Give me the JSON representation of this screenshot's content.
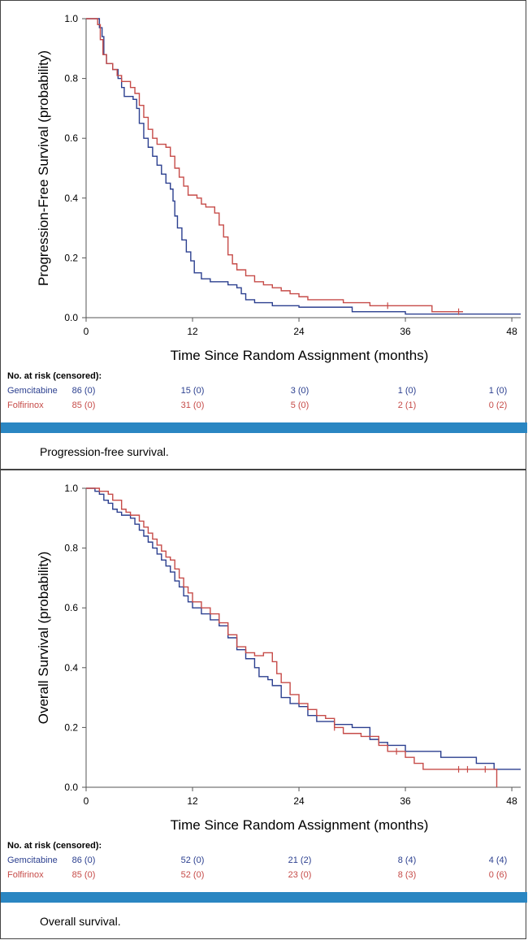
{
  "colors": {
    "gemcitabine": "#2b3f8f",
    "folfirinox": "#c64b48",
    "band": "#2a86c2"
  },
  "risk_title": "No. at risk (censored):",
  "chart_data": [
    {
      "type": "line",
      "subtype": "kaplan-meier-step",
      "xlabel": "Time Since Random Assignment (months)",
      "ylabel": "Progression-Free Survival (probability)",
      "xlim": [
        0,
        49
      ],
      "ylim": [
        0,
        1.0
      ],
      "x_ticks": [
        0,
        12,
        24,
        36,
        48
      ],
      "y_ticks": [
        0.0,
        0.2,
        0.4,
        0.6,
        0.8,
        1.0
      ],
      "x_tick_labels": [
        "0",
        "12",
        "24",
        "36",
        "48"
      ],
      "y_tick_labels": [
        "0.0",
        "0.2",
        "0.4",
        "0.6",
        "0.8",
        "1.0"
      ],
      "grid": false,
      "series": [
        {
          "name": "Gemcitabine",
          "color": "#2b3f8f",
          "points": [
            [
              0,
              1.0
            ],
            [
              1.2,
              1.0
            ],
            [
              1.5,
              0.97
            ],
            [
              1.8,
              0.94
            ],
            [
              2.0,
              0.88
            ],
            [
              2.3,
              0.85
            ],
            [
              3.0,
              0.83
            ],
            [
              3.6,
              0.8
            ],
            [
              4.0,
              0.77
            ],
            [
              4.3,
              0.74
            ],
            [
              5.3,
              0.73
            ],
            [
              5.7,
              0.7
            ],
            [
              6.0,
              0.65
            ],
            [
              6.5,
              0.6
            ],
            [
              7.0,
              0.57
            ],
            [
              7.5,
              0.54
            ],
            [
              8.0,
              0.51
            ],
            [
              8.5,
              0.48
            ],
            [
              9.0,
              0.45
            ],
            [
              9.5,
              0.43
            ],
            [
              9.8,
              0.39
            ],
            [
              10.0,
              0.34
            ],
            [
              10.3,
              0.3
            ],
            [
              10.8,
              0.26
            ],
            [
              11.3,
              0.22
            ],
            [
              11.8,
              0.19
            ],
            [
              12.2,
              0.15
            ],
            [
              13.0,
              0.13
            ],
            [
              14.0,
              0.12
            ],
            [
              16.0,
              0.11
            ],
            [
              17.0,
              0.1
            ],
            [
              17.5,
              0.08
            ],
            [
              18.0,
              0.06
            ],
            [
              19.0,
              0.05
            ],
            [
              21.0,
              0.04
            ],
            [
              24.0,
              0.035
            ],
            [
              30.0,
              0.02
            ],
            [
              36.0,
              0.012
            ],
            [
              49.0,
              0.012
            ]
          ],
          "censored": []
        },
        {
          "name": "Folfirinox",
          "color": "#c64b48",
          "points": [
            [
              0,
              1.0
            ],
            [
              1.0,
              1.0
            ],
            [
              1.3,
              0.98
            ],
            [
              1.6,
              0.93
            ],
            [
              1.9,
              0.88
            ],
            [
              2.3,
              0.85
            ],
            [
              3.0,
              0.83
            ],
            [
              3.5,
              0.81
            ],
            [
              4.0,
              0.79
            ],
            [
              5.0,
              0.77
            ],
            [
              5.5,
              0.75
            ],
            [
              6.0,
              0.71
            ],
            [
              6.5,
              0.67
            ],
            [
              7.0,
              0.63
            ],
            [
              7.5,
              0.6
            ],
            [
              8.0,
              0.58
            ],
            [
              9.0,
              0.57
            ],
            [
              9.5,
              0.54
            ],
            [
              10.0,
              0.5
            ],
            [
              10.5,
              0.47
            ],
            [
              11.0,
              0.44
            ],
            [
              11.5,
              0.41
            ],
            [
              12.5,
              0.4
            ],
            [
              13.0,
              0.38
            ],
            [
              13.5,
              0.37
            ],
            [
              14.5,
              0.35
            ],
            [
              15.0,
              0.31
            ],
            [
              15.5,
              0.27
            ],
            [
              16.0,
              0.21
            ],
            [
              16.5,
              0.18
            ],
            [
              17.0,
              0.16
            ],
            [
              18.0,
              0.14
            ],
            [
              19.0,
              0.12
            ],
            [
              20.0,
              0.11
            ],
            [
              21.0,
              0.1
            ],
            [
              22.0,
              0.09
            ],
            [
              23.0,
              0.08
            ],
            [
              24.0,
              0.07
            ],
            [
              25.0,
              0.06
            ],
            [
              29.0,
              0.05
            ],
            [
              32.0,
              0.04
            ],
            [
              39.0,
              0.02
            ],
            [
              42.5,
              0.02
            ]
          ],
          "censored": [
            34,
            42
          ]
        }
      ],
      "risk_table": {
        "header_times": [
          0,
          12,
          24,
          36,
          48
        ],
        "rows": [
          {
            "label": "Gemcitabine",
            "values": [
              "86 (0)",
              "15 (0)",
              "3 (0)",
              "1 (0)",
              "1 (0)"
            ]
          },
          {
            "label": "Folfirinox",
            "values": [
              "85 (0)",
              "31 (0)",
              "5 (0)",
              "2 (1)",
              "0 (2)"
            ]
          }
        ]
      },
      "caption": "Progression-free survival."
    },
    {
      "type": "line",
      "subtype": "kaplan-meier-step",
      "xlabel": "Time Since Random Assignment (months)",
      "ylabel": "Overall Survival (probability)",
      "xlim": [
        0,
        49
      ],
      "ylim": [
        0,
        1.0
      ],
      "x_ticks": [
        0,
        12,
        24,
        36,
        48
      ],
      "y_ticks": [
        0.0,
        0.2,
        0.4,
        0.6,
        0.8,
        1.0
      ],
      "x_tick_labels": [
        "0",
        "12",
        "24",
        "36",
        "48"
      ],
      "y_tick_labels": [
        "0.0",
        "0.2",
        "0.4",
        "0.6",
        "0.8",
        "1.0"
      ],
      "grid": false,
      "series": [
        {
          "name": "Gemcitabine",
          "color": "#2b3f8f",
          "points": [
            [
              0,
              1.0
            ],
            [
              1.0,
              0.99
            ],
            [
              1.5,
              0.98
            ],
            [
              2.0,
              0.96
            ],
            [
              2.5,
              0.95
            ],
            [
              3.0,
              0.93
            ],
            [
              3.5,
              0.92
            ],
            [
              4.0,
              0.91
            ],
            [
              5.0,
              0.9
            ],
            [
              5.5,
              0.88
            ],
            [
              6.0,
              0.86
            ],
            [
              6.5,
              0.84
            ],
            [
              7.0,
              0.82
            ],
            [
              7.5,
              0.8
            ],
            [
              8.0,
              0.78
            ],
            [
              8.5,
              0.76
            ],
            [
              9.0,
              0.74
            ],
            [
              9.5,
              0.72
            ],
            [
              10.0,
              0.69
            ],
            [
              10.5,
              0.67
            ],
            [
              11.0,
              0.64
            ],
            [
              11.5,
              0.62
            ],
            [
              12.0,
              0.6
            ],
            [
              13.0,
              0.58
            ],
            [
              14.0,
              0.56
            ],
            [
              15.0,
              0.54
            ],
            [
              16.0,
              0.5
            ],
            [
              17.0,
              0.46
            ],
            [
              18.0,
              0.43
            ],
            [
              19.0,
              0.4
            ],
            [
              19.5,
              0.37
            ],
            [
              20.5,
              0.36
            ],
            [
              21.0,
              0.34
            ],
            [
              22.0,
              0.3
            ],
            [
              23.0,
              0.28
            ],
            [
              24.0,
              0.27
            ],
            [
              25.0,
              0.24
            ],
            [
              26.0,
              0.22
            ],
            [
              28.0,
              0.21
            ],
            [
              30.0,
              0.2
            ],
            [
              32.0,
              0.16
            ],
            [
              33.0,
              0.15
            ],
            [
              34.0,
              0.14
            ],
            [
              36.0,
              0.12
            ],
            [
              40.0,
              0.1
            ],
            [
              44.0,
              0.08
            ],
            [
              46.0,
              0.06
            ],
            [
              49.0,
              0.06
            ]
          ],
          "censored": []
        },
        {
          "name": "Folfirinox",
          "color": "#c64b48",
          "points": [
            [
              0,
              1.0
            ],
            [
              1.5,
              0.99
            ],
            [
              2.5,
              0.98
            ],
            [
              3.0,
              0.96
            ],
            [
              4.0,
              0.93
            ],
            [
              4.5,
              0.92
            ],
            [
              5.0,
              0.91
            ],
            [
              6.0,
              0.89
            ],
            [
              6.5,
              0.87
            ],
            [
              7.0,
              0.85
            ],
            [
              7.5,
              0.83
            ],
            [
              8.0,
              0.81
            ],
            [
              8.5,
              0.79
            ],
            [
              9.0,
              0.77
            ],
            [
              9.5,
              0.76
            ],
            [
              10.0,
              0.73
            ],
            [
              10.5,
              0.7
            ],
            [
              11.0,
              0.67
            ],
            [
              11.5,
              0.65
            ],
            [
              12.0,
              0.62
            ],
            [
              13.0,
              0.6
            ],
            [
              14.0,
              0.58
            ],
            [
              15.0,
              0.55
            ],
            [
              16.0,
              0.51
            ],
            [
              17.0,
              0.47
            ],
            [
              18.0,
              0.45
            ],
            [
              19.0,
              0.44
            ],
            [
              20.0,
              0.45
            ],
            [
              21.0,
              0.42
            ],
            [
              21.5,
              0.38
            ],
            [
              22.0,
              0.35
            ],
            [
              23.0,
              0.31
            ],
            [
              24.0,
              0.28
            ],
            [
              25.0,
              0.26
            ],
            [
              26.0,
              0.24
            ],
            [
              27.0,
              0.23
            ],
            [
              28.0,
              0.2
            ],
            [
              29.0,
              0.18
            ],
            [
              31.0,
              0.17
            ],
            [
              33.0,
              0.14
            ],
            [
              34.0,
              0.12
            ],
            [
              36.0,
              0.1
            ],
            [
              37.0,
              0.08
            ],
            [
              38.0,
              0.06
            ],
            [
              44.0,
              0.06
            ],
            [
              46.3,
              0.06
            ],
            [
              46.3,
              0.0
            ]
          ],
          "censored": [
            28,
            35,
            42,
            43,
            45
          ]
        }
      ],
      "risk_table": {
        "header_times": [
          0,
          12,
          24,
          36,
          48
        ],
        "rows": [
          {
            "label": "Gemcitabine",
            "values": [
              "86 (0)",
              "52 (0)",
              "21 (2)",
              "8 (4)",
              "4 (4)"
            ]
          },
          {
            "label": "Folfirinox",
            "values": [
              "85 (0)",
              "52 (0)",
              "23 (0)",
              "8 (3)",
              "0 (6)"
            ]
          }
        ]
      },
      "caption": "Overall survival."
    }
  ]
}
